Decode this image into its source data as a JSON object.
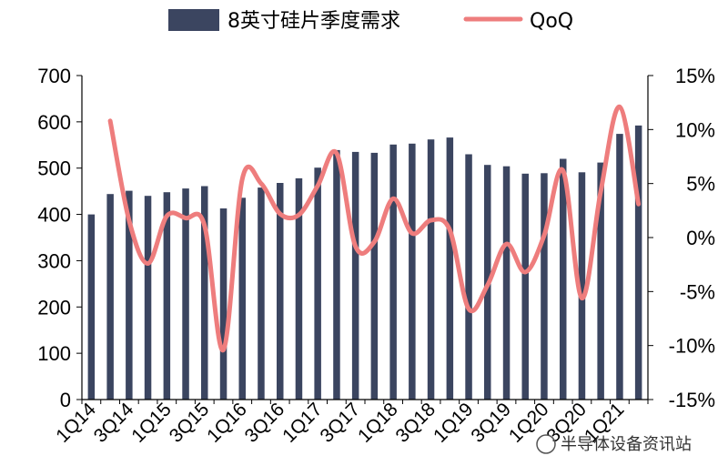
{
  "chart_data": {
    "type": "bar+line",
    "x": [
      "1Q14",
      "2Q14",
      "3Q14",
      "4Q14",
      "1Q15",
      "2Q15",
      "3Q15",
      "4Q15",
      "1Q16",
      "2Q16",
      "3Q16",
      "4Q16",
      "1Q17",
      "2Q17",
      "3Q17",
      "4Q17",
      "1Q18",
      "2Q18",
      "3Q18",
      "4Q18",
      "1Q19",
      "2Q19",
      "3Q19",
      "4Q19",
      "1Q20",
      "2Q20",
      "3Q20",
      "4Q20",
      "1Q21",
      "2Q21"
    ],
    "xtick_labels": [
      "1Q14",
      "3Q14",
      "1Q15",
      "3Q15",
      "1Q16",
      "3Q16",
      "1Q17",
      "3Q17",
      "1Q18",
      "3Q18",
      "1Q19",
      "3Q19",
      "1Q20",
      "3Q20",
      "1Q21"
    ],
    "series": [
      {
        "name": "8英寸硅片季度需求",
        "type": "bar",
        "axis": "left",
        "values": [
          400,
          444,
          451,
          440,
          448,
          456,
          461,
          413,
          436,
          458,
          468,
          478,
          501,
          539,
          535,
          533,
          551,
          553,
          562,
          566,
          530,
          507,
          504,
          488,
          489,
          520,
          491,
          512,
          574,
          592
        ]
      },
      {
        "name": "QoQ",
        "type": "line",
        "axis": "right",
        "values": [
          null,
          10.8,
          1.6,
          -2.4,
          2.0,
          1.8,
          1.1,
          -10.4,
          5.4,
          5.0,
          2.2,
          2.1,
          4.8,
          7.8,
          -0.8,
          -0.4,
          3.6,
          0.4,
          1.6,
          0.7,
          -6.6,
          -4.4,
          -0.6,
          -3.2,
          0.2,
          6.2,
          -5.6,
          4.3,
          12.1,
          3.1
        ]
      }
    ],
    "y_left": {
      "ticks": [
        "0",
        "100",
        "200",
        "300",
        "400",
        "500",
        "600",
        "700"
      ],
      "lim": [
        0,
        700
      ]
    },
    "y_right": {
      "ticks": [
        "-15%",
        "-10%",
        "-5%",
        "0%",
        "5%",
        "10%",
        "15%"
      ],
      "lim": [
        -15,
        15
      ]
    },
    "legend_position": "top",
    "grid": false,
    "colors": {
      "bar": "#3b4560",
      "line": "#ee7d7d",
      "axis": "#000000"
    }
  },
  "watermark": {
    "text": "半导体设备资讯站"
  }
}
